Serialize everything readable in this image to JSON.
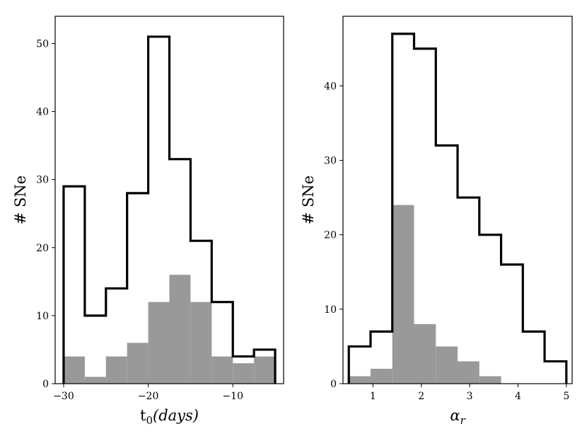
{
  "chart_data": [
    {
      "type": "bar",
      "title": "",
      "xlabel": "t",
      "xlabel_subscript": "0",
      "xlabel_paren": "(days)",
      "ylabel": "# SNe",
      "xlim": [
        -31,
        -4
      ],
      "ylim": [
        0,
        54
      ],
      "grid": false,
      "legend": "none",
      "xticks": [
        -30,
        -20,
        -10
      ],
      "xtick_labels": [
        "−30",
        "−20",
        "−10"
      ],
      "yticks": [
        0,
        10,
        20,
        30,
        40,
        50
      ],
      "ytick_labels": [
        "0",
        "10",
        "20",
        "30",
        "40",
        "50"
      ],
      "bin_edges": [
        -30,
        -27.5,
        -25,
        -22.5,
        -20,
        -17.5,
        -15,
        -12.5,
        -10,
        -7.5,
        -5
      ],
      "series": [
        {
          "style": "step-outline",
          "color": "#000000",
          "values": [
            29,
            10,
            14,
            28,
            51,
            33,
            21,
            12,
            4,
            5
          ]
        },
        {
          "style": "filled",
          "color": "#999999",
          "values": [
            4,
            1,
            4,
            6,
            12,
            16,
            12,
            4,
            3,
            4
          ]
        }
      ]
    },
    {
      "type": "bar",
      "title": "",
      "xlabel": "α",
      "xlabel_subscript": "r",
      "ylabel": "# SNe",
      "xlim": [
        0.38,
        5.12
      ],
      "ylim": [
        0,
        49.35
      ],
      "grid": false,
      "legend": "none",
      "xticks": [
        1,
        2,
        3,
        4,
        5
      ],
      "xtick_labels": [
        "1",
        "2",
        "3",
        "4",
        "5"
      ],
      "yticks": [
        0,
        10,
        20,
        30,
        40
      ],
      "ytick_labels": [
        "0",
        "10",
        "20",
        "30",
        "40"
      ],
      "bin_edges": [
        0.5,
        0.95,
        1.4,
        1.85,
        2.3,
        2.75,
        3.2,
        3.65,
        4.1,
        4.55,
        5.0
      ],
      "series": [
        {
          "style": "step-outline",
          "color": "#000000",
          "values": [
            5,
            7,
            47,
            45,
            32,
            25,
            20,
            16,
            7,
            3
          ]
        },
        {
          "style": "filled",
          "color": "#999999",
          "values": [
            1,
            2,
            24,
            8,
            5,
            3,
            1,
            0,
            0,
            0
          ]
        }
      ]
    }
  ]
}
